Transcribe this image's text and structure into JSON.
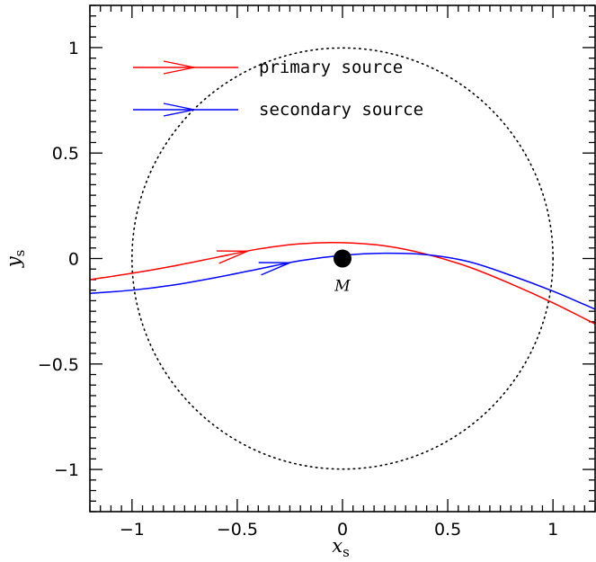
{
  "chart_data": {
    "type": "line",
    "title": "",
    "xlabel": "x",
    "xlabel_sub": "s",
    "ylabel": "y",
    "ylabel_sub": "s",
    "xlim": [
      -1.2,
      1.2
    ],
    "ylim": [
      -1.2,
      1.2
    ],
    "xticks": [
      -1,
      -0.5,
      0,
      0.5,
      1
    ],
    "yticks": [
      -1,
      -0.5,
      0,
      0.5,
      1
    ],
    "xtick_labels": [
      "−1",
      "−0.5",
      "0",
      "0.5",
      "1"
    ],
    "ytick_labels": [
      "−1",
      "−0.5",
      "0",
      "0.5",
      "1"
    ],
    "grid": false,
    "legend_position": "top-left",
    "series": [
      {
        "name": "primary source",
        "color": "#ff0000",
        "x": [
          -1.2,
          -1.0,
          -0.8,
          -0.6,
          -0.4,
          -0.2,
          0.0,
          0.2,
          0.4,
          0.6,
          0.8,
          1.0,
          1.2
        ],
        "y": [
          -0.1,
          -0.07,
          -0.035,
          0.005,
          0.045,
          0.07,
          0.075,
          0.06,
          0.02,
          -0.04,
          -0.12,
          -0.21,
          -0.31
        ],
        "arrow_x": -0.45
      },
      {
        "name": "secondary source",
        "color": "#0000ff",
        "x": [
          -1.2,
          -1.0,
          -0.8,
          -0.6,
          -0.4,
          -0.2,
          0.0,
          0.2,
          0.4,
          0.6,
          0.8,
          1.0,
          1.2
        ],
        "y": [
          -0.165,
          -0.15,
          -0.125,
          -0.09,
          -0.05,
          -0.01,
          0.015,
          0.025,
          0.018,
          -0.015,
          -0.08,
          -0.155,
          -0.24
        ],
        "arrow_x": -0.25
      }
    ],
    "circle": {
      "center": [
        0,
        0
      ],
      "radius": 1,
      "style": "dotted",
      "color": "#000000"
    },
    "mass": {
      "x": 0,
      "y": 0,
      "label": "M"
    }
  }
}
